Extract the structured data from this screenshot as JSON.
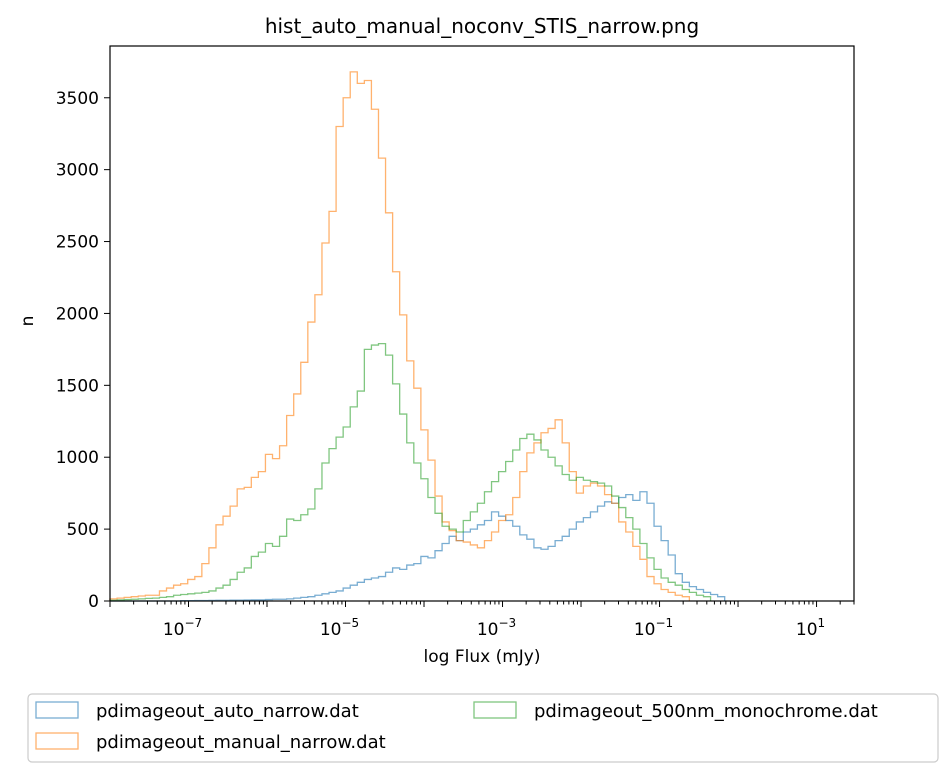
{
  "chart_data": {
    "type": "histogram-step",
    "title": "hist_auto_manual_noconv_STIS_narrow.png",
    "xlabel": "log Flux (mJy)",
    "ylabel": "n",
    "xscale": "log",
    "xlim": [
      1e-08,
      30
    ],
    "ylim": [
      0,
      3860
    ],
    "grid": false,
    "legend_position": "below-plot",
    "x_ticks": [
      {
        "value": 1e-07,
        "base": "10",
        "exp": "−7"
      },
      {
        "value": 1e-05,
        "base": "10",
        "exp": "−5"
      },
      {
        "value": 0.001,
        "base": "10",
        "exp": "−3"
      },
      {
        "value": 0.1,
        "base": "10",
        "exp": "−1"
      },
      {
        "value": 10,
        "base": "10",
        "exp": "1"
      }
    ],
    "y_ticks": [
      0,
      500,
      1000,
      1500,
      2000,
      2500,
      3000,
      3500
    ],
    "bins": {
      "log_start": -8,
      "log_end": 1,
      "count": 100
    },
    "series": [
      {
        "name": "pdimageout_auto_narrow.dat",
        "color": "#1f77b4",
        "values": [
          0,
          0,
          0,
          0,
          0,
          0,
          0,
          0,
          0,
          0,
          2,
          2,
          3,
          3,
          4,
          5,
          5,
          6,
          6,
          7,
          8,
          8,
          10,
          12,
          12,
          15,
          20,
          25,
          30,
          40,
          50,
          60,
          70,
          90,
          110,
          130,
          150,
          160,
          170,
          200,
          230,
          220,
          250,
          260,
          310,
          300,
          350,
          400,
          450,
          420,
          480,
          500,
          530,
          560,
          620,
          590,
          560,
          520,
          460,
          430,
          370,
          360,
          380,
          420,
          450,
          500,
          550,
          580,
          620,
          660,
          690,
          680,
          720,
          740,
          700,
          760,
          680,
          520,
          420,
          320,
          190,
          130,
          100,
          80,
          60,
          45,
          30
        ]
      },
      {
        "name": "pdimageout_manual_narrow.dat",
        "color": "#ff7f0e",
        "values": [
          15,
          20,
          25,
          30,
          35,
          40,
          40,
          70,
          90,
          110,
          120,
          150,
          170,
          260,
          370,
          530,
          590,
          660,
          780,
          790,
          860,
          900,
          1020,
          990,
          1080,
          1290,
          1440,
          1660,
          1940,
          2130,
          2490,
          2710,
          3300,
          3500,
          3680,
          3600,
          3620,
          3420,
          3080,
          2700,
          2290,
          1990,
          1670,
          1480,
          1190,
          980,
          730,
          550,
          490,
          420,
          410,
          390,
          370,
          420,
          480,
          560,
          600,
          720,
          900,
          1030,
          1100,
          1170,
          1200,
          1260,
          1100,
          900,
          750,
          800,
          820,
          800,
          740,
          680,
          550,
          480,
          380,
          290,
          170,
          120,
          80,
          60,
          40,
          30
        ]
      },
      {
        "name": "pdimageout_500nm_monochrome.dat",
        "color": "#2ca02c",
        "values": [
          5,
          8,
          10,
          12,
          15,
          18,
          20,
          25,
          30,
          40,
          45,
          50,
          55,
          60,
          70,
          90,
          110,
          150,
          200,
          230,
          310,
          340,
          400,
          380,
          450,
          570,
          560,
          600,
          640,
          780,
          960,
          1060,
          1140,
          1210,
          1350,
          1460,
          1750,
          1780,
          1790,
          1710,
          1510,
          1300,
          1100,
          960,
          850,
          720,
          610,
          520,
          500,
          480,
          560,
          620,
          680,
          760,
          830,
          900,
          970,
          1050,
          1130,
          1160,
          1120,
          1050,
          1000,
          940,
          880,
          840,
          860,
          840,
          830,
          820,
          800,
          730,
          650,
          580,
          500,
          400,
          300,
          220,
          160,
          130,
          110,
          80,
          60,
          40,
          30
        ]
      }
    ]
  }
}
